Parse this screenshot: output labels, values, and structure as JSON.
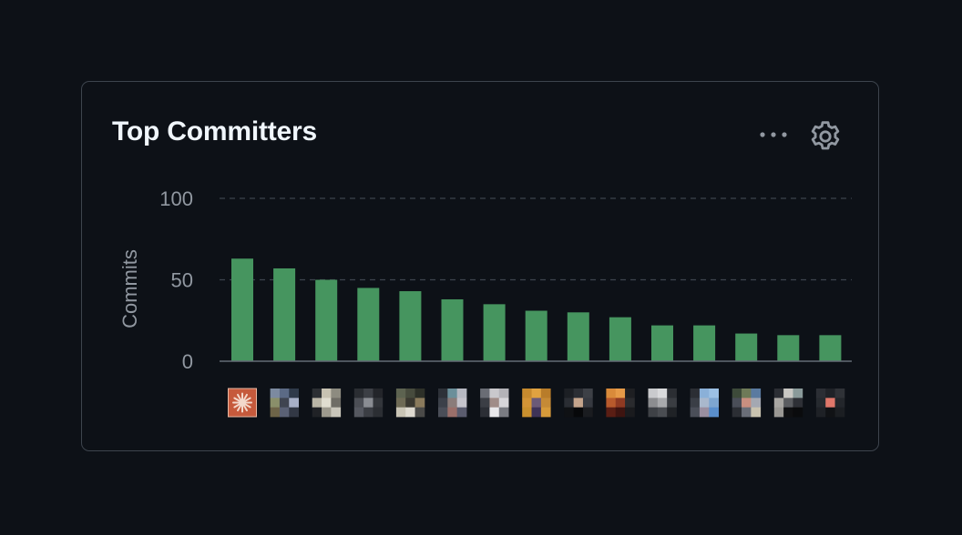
{
  "card": {
    "title": "Top Committers",
    "more_icon": "kebab-horizontal-icon",
    "settings_icon": "gear-icon"
  },
  "colors": {
    "background": "#0d1117",
    "bar": "#46955f",
    "text_muted": "#9198a1",
    "title": "#f0f6fc",
    "border": "#3d444d",
    "grid": "#3d444d"
  },
  "chart_data": {
    "type": "bar",
    "title": "",
    "xlabel": "",
    "ylabel": "Commits",
    "ylim": [
      0,
      100
    ],
    "yticks": [
      0,
      50,
      100
    ],
    "grid": true,
    "legend": "none",
    "categories": [
      "avatar-1",
      "avatar-2",
      "avatar-3",
      "avatar-4",
      "avatar-5",
      "avatar-6",
      "avatar-7",
      "avatar-8",
      "avatar-9",
      "avatar-10",
      "avatar-11",
      "avatar-12",
      "avatar-13",
      "avatar-14",
      "avatar-15"
    ],
    "values": [
      63,
      57,
      50,
      45,
      43,
      38,
      35,
      31,
      30,
      27,
      22,
      22,
      17,
      16,
      16
    ]
  },
  "avatars": [
    {
      "type": "logo",
      "colors": [
        "#c65a3c",
        "#f3d9cc",
        "#a9452b",
        "#e8b8a3"
      ]
    },
    {
      "type": "pixel",
      "colors": [
        "#7c8aa0",
        "#5b6a85",
        "#2f3a4a",
        "#8a8f6a",
        "#3f4450",
        "#a7b0c7",
        "#6d6448",
        "#5a6175",
        "#323845"
      ]
    },
    {
      "type": "pixel",
      "colors": [
        "#2c2f33",
        "#c7c2b2",
        "#8d8b80",
        "#b9b5a6",
        "#e0ddd0",
        "#6f6d66",
        "#202226",
        "#9d9a8e",
        "#c9c6bb"
      ]
    },
    {
      "type": "pixel",
      "colors": [
        "#2a2d32",
        "#3c3f45",
        "#23252a",
        "#4b4e55",
        "#8a8d93",
        "#33363b",
        "#555860",
        "#3b3e44",
        "#2b2e33"
      ]
    },
    {
      "type": "pixel",
      "colors": [
        "#5d6350",
        "#474b3d",
        "#2d3028",
        "#6e6a55",
        "#3a3830",
        "#8a7a5c",
        "#c9c4b5",
        "#dedad0",
        "#4a4a48"
      ]
    },
    {
      "type": "pixel",
      "colors": [
        "#2d3138",
        "#6b8f9a",
        "#b7b9c2",
        "#3b4049",
        "#8a7c7a",
        "#c5c4cc",
        "#4a4e58",
        "#9a6f6a",
        "#5a5c6e"
      ]
    },
    {
      "type": "pixel",
      "colors": [
        "#6a6d75",
        "#c9c8cc",
        "#b4b3b8",
        "#3b3e45",
        "#a08c88",
        "#d7d6da",
        "#2b2e35",
        "#e8e7ea",
        "#7a7c83"
      ]
    },
    {
      "type": "pixel",
      "colors": [
        "#c78a2e",
        "#e0a240",
        "#b87c2a",
        "#d39436",
        "#6b5a78",
        "#c58a36",
        "#c9902e",
        "#3e3358",
        "#d69a3a"
      ]
    },
    {
      "type": "pixel",
      "colors": [
        "#1c1f24",
        "#2b2e34",
        "#3d4046",
        "#2a2d33",
        "#c4a48c",
        "#363940",
        "#0f1114",
        "#07080a",
        "#1a1c20"
      ]
    },
    {
      "type": "pixel",
      "colors": [
        "#d98a3a",
        "#e69a48",
        "#1e1f22",
        "#b85a2c",
        "#8f3a22",
        "#2a2b2e",
        "#5a1e14",
        "#3e1410",
        "#1a1b1e"
      ]
    },
    {
      "type": "pixel",
      "colors": [
        "#c9cacd",
        "#d9dadc",
        "#2b2e33",
        "#8c8d90",
        "#a9aaad",
        "#3a3d42",
        "#3e4146",
        "#4a4d52",
        "#1f2226"
      ]
    },
    {
      "type": "pixel",
      "colors": [
        "#2b2e34",
        "#8ab0d8",
        "#9cc0e4",
        "#3a3e46",
        "#a9b8cc",
        "#7ea6d0",
        "#4a4e58",
        "#9a8fa0",
        "#5a8fcc"
      ]
    },
    {
      "type": "pixel",
      "colors": [
        "#3d4a3a",
        "#6e7a58",
        "#5a7aa0",
        "#4a4e58",
        "#c98f80",
        "#a4a8b2",
        "#2b2e34",
        "#6a6e78",
        "#c9c3b0"
      ]
    },
    {
      "type": "pixel",
      "colors": [
        "#2b2e34",
        "#c9c8c4",
        "#8a9a9a",
        "#a8a6a2",
        "#5a5c60",
        "#2e3036",
        "#9a9894",
        "#0f1012",
        "#0a0b0d"
      ]
    },
    {
      "type": "pixel",
      "colors": [
        "#2b2e34",
        "#1f2227",
        "#2f3237",
        "#262a2f",
        "#e0776a",
        "#23262b",
        "#1e2126",
        "#101215",
        "#1b1e22"
      ]
    }
  ]
}
